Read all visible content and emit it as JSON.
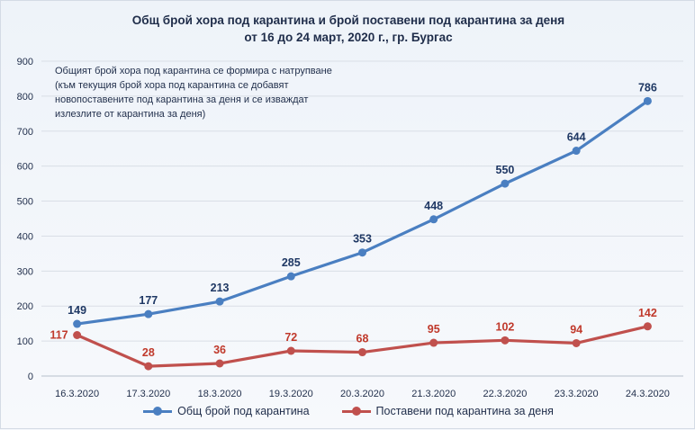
{
  "chart_data": {
    "type": "line",
    "title": "Общ брой хора под карантина  и брой поставени под карантина за деня",
    "subtitle": "от 16 до 24 март, 2020 г., гр. Бургас",
    "annotation": "Общият брой хора под карантина се формира с натрупване (към текущия брой хора под карантина се добавят новопоставените под карантина за деня и се изваждат излезлите от карантина за деня)",
    "categories": [
      "16.3.2020",
      "17.3.2020",
      "18.3.2020",
      "19.3.2020",
      "20.3.2020",
      "21.3.2020",
      "22.3.2020",
      "23.3.2020",
      "24.3.2020"
    ],
    "series": [
      {
        "name": "Общ брой под карантина",
        "values": [
          149,
          177,
          213,
          285,
          353,
          448,
          550,
          644,
          786
        ],
        "color": "#4a7fc1",
        "label_color": "#1f3864"
      },
      {
        "name": "Поставени под карантина за деня",
        "values": [
          117,
          28,
          36,
          72,
          68,
          95,
          102,
          94,
          142
        ],
        "color": "#c0504d",
        "label_color": "#c0392b"
      }
    ],
    "ylim": [
      0,
      900
    ],
    "yticks": [
      0,
      100,
      200,
      300,
      400,
      500,
      600,
      700,
      800,
      900
    ],
    "grid": true,
    "legend_position": "bottom"
  }
}
